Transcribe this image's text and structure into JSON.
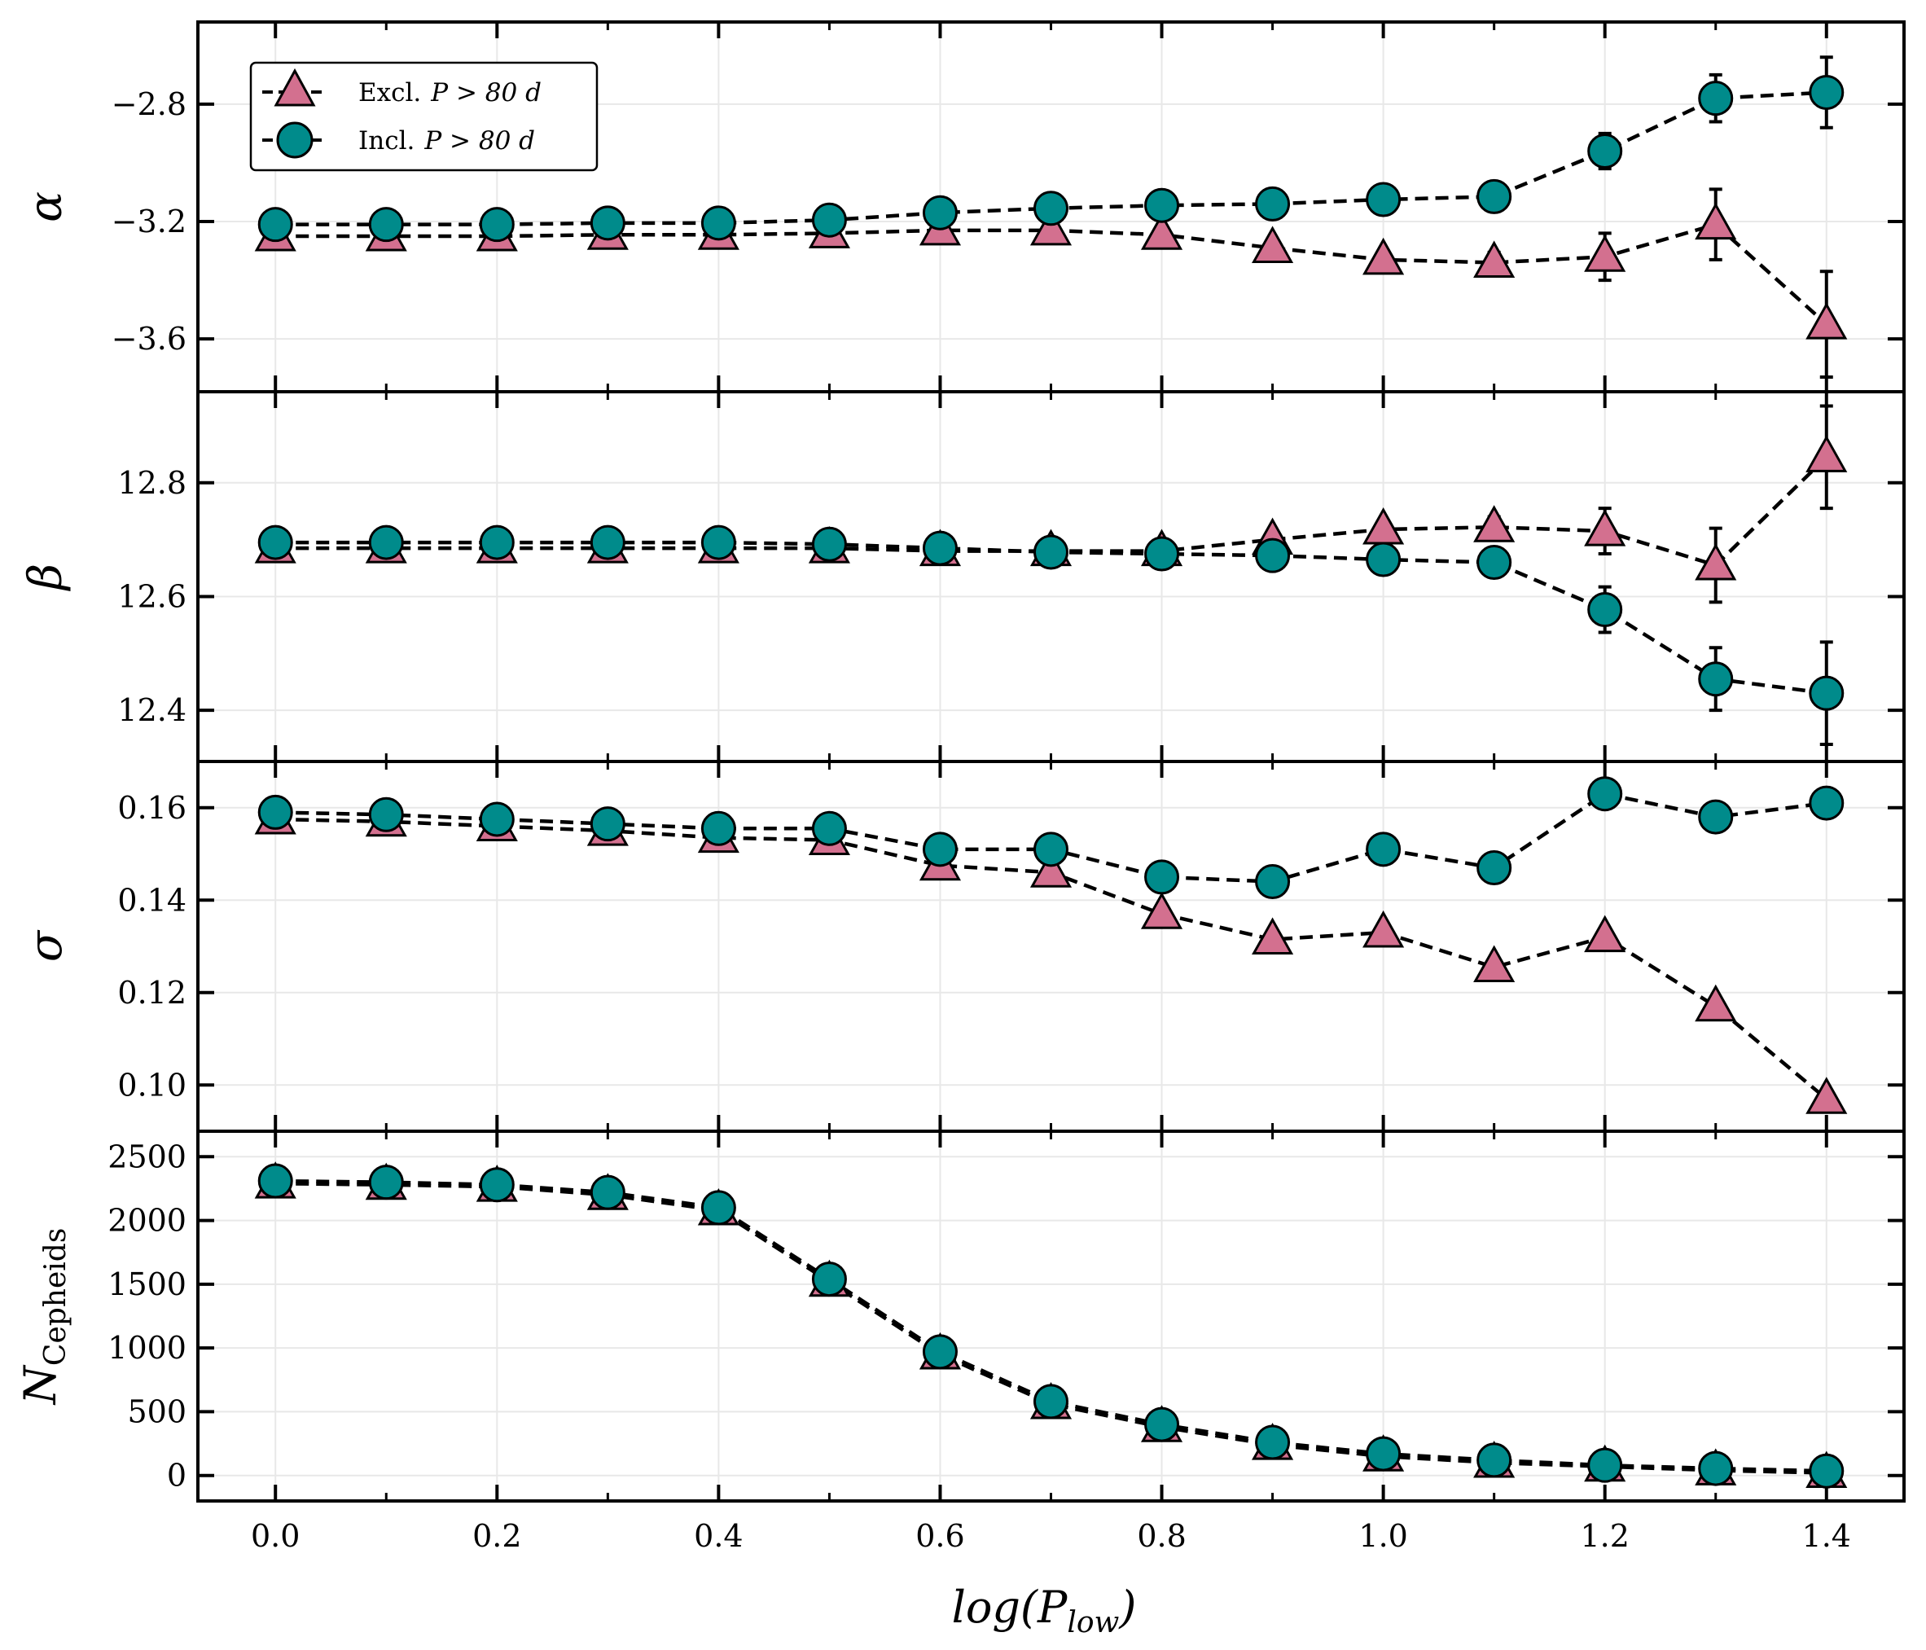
{
  "chart_data": {
    "type": "line",
    "x": [
      0.0,
      0.1,
      0.2,
      0.3,
      0.4,
      0.5,
      0.6,
      0.7,
      0.8,
      0.9,
      1.0,
      1.1,
      1.2,
      1.3,
      1.4
    ],
    "xlabel": "log(P_low)",
    "xlabel_parts": {
      "base": "log(P",
      "sub": "low",
      "close": ")"
    },
    "xticks": [
      "0.0",
      "0.2",
      "0.4",
      "0.6",
      "0.8",
      "1.0",
      "1.2",
      "1.4"
    ],
    "xlim": [
      -0.07,
      1.47
    ],
    "legend": {
      "position": "top-left",
      "entries": [
        {
          "series": "excl",
          "prefix": "Excl.",
          "math": "P > 80 d"
        },
        {
          "series": "incl",
          "prefix": "Incl.",
          "math": "P > 80 d"
        }
      ]
    },
    "series_style": {
      "excl": {
        "marker": "triangle",
        "color": "#d3708f"
      },
      "incl": {
        "marker": "circle",
        "color": "#008b8b"
      }
    },
    "panels": [
      {
        "id": "alpha",
        "ylabel": "α",
        "ylim": [
          -3.78,
          -2.52
        ],
        "yticks": [
          "−2.8",
          "−3.2",
          "−3.6"
        ],
        "ytick_values": [
          -2.8,
          -3.2,
          -3.6
        ],
        "series": [
          {
            "name": "Excl. P > 80 d",
            "key": "excl",
            "values": [
              -3.25,
              -3.25,
              -3.25,
              -3.245,
              -3.245,
              -3.24,
              -3.23,
              -3.23,
              -3.245,
              -3.29,
              -3.33,
              -3.34,
              -3.32,
              -3.21,
              -3.55
            ],
            "errors": [
              0.01,
              0.01,
              0.01,
              0.01,
              0.01,
              0.01,
              0.012,
              0.014,
              0.018,
              0.025,
              0.03,
              0.035,
              0.08,
              0.12,
              0.18
            ]
          },
          {
            "name": "Incl. P > 80 d",
            "key": "incl",
            "values": [
              -3.21,
              -3.21,
              -3.21,
              -3.205,
              -3.205,
              -3.195,
              -3.17,
              -3.155,
              -3.145,
              -3.14,
              -3.125,
              -3.115,
              -2.96,
              -2.78,
              -2.76
            ],
            "errors": [
              0.01,
              0.01,
              0.01,
              0.01,
              0.01,
              0.01,
              0.012,
              0.012,
              0.015,
              0.018,
              0.022,
              0.03,
              0.06,
              0.08,
              0.12
            ]
          }
        ]
      },
      {
        "id": "beta",
        "ylabel": "β",
        "ylim": [
          12.31,
          12.96
        ],
        "yticks": [
          "12.8",
          "12.6",
          "12.4"
        ],
        "ytick_values": [
          12.8,
          12.6,
          12.4
        ],
        "series": [
          {
            "name": "Excl. P > 80 d",
            "key": "excl",
            "values": [
              12.685,
              12.685,
              12.685,
              12.685,
              12.685,
              12.685,
              12.68,
              12.68,
              12.68,
              12.7,
              12.718,
              12.722,
              12.715,
              12.655,
              12.845
            ],
            "errors": [
              0.004,
              0.004,
              0.004,
              0.004,
              0.004,
              0.005,
              0.005,
              0.006,
              0.008,
              0.01,
              0.014,
              0.018,
              0.04,
              0.065,
              0.09
            ]
          },
          {
            "name": "Incl. P > 80 d",
            "key": "incl",
            "values": [
              12.695,
              12.695,
              12.695,
              12.695,
              12.695,
              12.692,
              12.685,
              12.678,
              12.675,
              12.672,
              12.665,
              12.66,
              12.577,
              12.455,
              12.43
            ],
            "errors": [
              0.004,
              0.004,
              0.004,
              0.004,
              0.004,
              0.005,
              0.005,
              0.006,
              0.008,
              0.01,
              0.012,
              0.016,
              0.04,
              0.055,
              0.09
            ]
          }
        ]
      },
      {
        "id": "sigma",
        "ylabel": "σ",
        "ylim": [
          0.09,
          0.17
        ],
        "yticks": [
          "0.16",
          "0.14",
          "0.12",
          "0.10"
        ],
        "ytick_values": [
          0.16,
          0.14,
          0.12,
          0.1
        ],
        "series": [
          {
            "name": "Excl. P > 80 d",
            "key": "excl",
            "values": [
              0.1575,
              0.157,
              0.156,
              0.155,
              0.1535,
              0.153,
              0.1475,
              0.146,
              0.137,
              0.1315,
              0.133,
              0.1255,
              0.132,
              0.117,
              0.097
            ]
          },
          {
            "name": "Incl. P > 80 d",
            "key": "incl",
            "values": [
              0.159,
              0.1585,
              0.1575,
              0.1565,
              0.1555,
              0.1555,
              0.151,
              0.151,
              0.145,
              0.144,
              0.151,
              0.147,
              0.163,
              0.158,
              0.161
            ]
          }
        ]
      },
      {
        "id": "ncepheids",
        "ylabel": "N_Cepheids",
        "ylabel_parts": {
          "base": "N",
          "sub": "Cepheids"
        },
        "ylim": [
          -200,
          2700
        ],
        "yticks": [
          "2500",
          "2000",
          "1500",
          "1000",
          "500",
          "0"
        ],
        "ytick_values": [
          2500,
          2000,
          1500,
          1000,
          500,
          0
        ],
        "series": [
          {
            "name": "Excl. P > 80 d",
            "key": "excl",
            "values": [
              2290,
              2280,
              2265,
              2200,
              2080,
              1520,
              950,
              560,
              380,
              240,
              150,
              100,
              70,
              40,
              20
            ]
          },
          {
            "name": "Incl. P > 80 d",
            "key": "incl",
            "values": [
              2310,
              2300,
              2280,
              2220,
              2100,
              1540,
              970,
              580,
              400,
              260,
              170,
              120,
              80,
              55,
              35
            ]
          }
        ]
      }
    ]
  }
}
